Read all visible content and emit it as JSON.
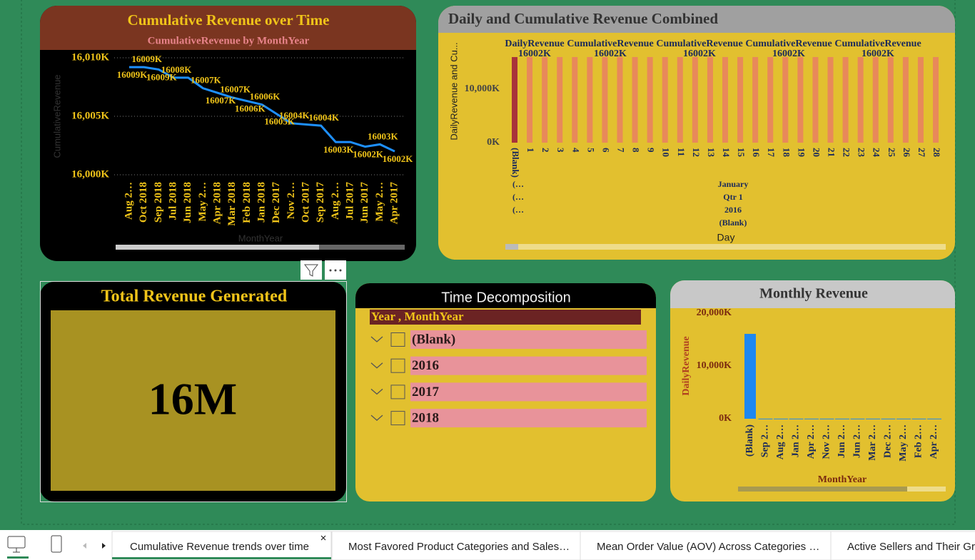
{
  "cumulative": {
    "type": "line",
    "title": "Cumulative Revenue over Time",
    "subtitle": "CumulativeRevenue by MonthYear",
    "y_label": "CumulativeRevenue",
    "x_label": "MonthYear",
    "categories": [
      "Aug 2…",
      "Oct 2018",
      "Sep 2018",
      "Jul 2018",
      "Jun 2018",
      "May 2…",
      "Apr 2018",
      "Mar 2018",
      "Feb 2018",
      "Jan 2018",
      "Dec 2017",
      "Nov 2…",
      "Oct 2017",
      "Sep 2017",
      "Aug 2…",
      "Jul 2017",
      "Jun 2017",
      "May 2…",
      "Apr 2017"
    ],
    "values": [
      16009.2,
      16009.2,
      16009.0,
      16008.3,
      16008.3,
      16007.4,
      16007.0,
      16006.6,
      16006.3,
      16006.0,
      16005.2,
      16004.4,
      16004.3,
      16004.2,
      16002.8,
      16002.8,
      16002.4,
      16002.6,
      16002.0
    ],
    "value_labels": [
      "16009K",
      "16009K",
      "16009K",
      "16008K",
      null,
      "16007K",
      "16007K",
      "16007K",
      "16006K",
      "16006K",
      "16005K",
      "16004K",
      null,
      "16004K",
      "16003K",
      null,
      "16002K",
      "16003K",
      "16002K"
    ],
    "color": "#1e90ff",
    "ylim": [
      16000,
      16010
    ],
    "yticks": [
      {
        "value": 16000,
        "label": "16,000K"
      },
      {
        "value": 16005,
        "label": "16,005K"
      },
      {
        "value": 16010,
        "label": "16,010K"
      }
    ],
    "grid": true
  },
  "combined": {
    "type": "bar",
    "title": "Daily and Cumulative Revenue Combined",
    "y_label": "DailyRevenue and Cu...",
    "x_label": "Day",
    "categories": [
      "(Blank)",
      "1",
      "2",
      "3",
      "4",
      "5",
      "6",
      "7",
      "8",
      "9",
      "10",
      "11",
      "12",
      "13",
      "14",
      "15",
      "16",
      "17",
      "18",
      "19",
      "20",
      "21",
      "22",
      "23",
      "24",
      "25",
      "26",
      "27",
      "28"
    ],
    "values": [
      16002,
      16002,
      16002,
      16002,
      16002,
      16002,
      16002,
      16002,
      16002,
      16002,
      16002,
      16002,
      16002,
      16002,
      16002,
      16002,
      16002,
      16002,
      16002,
      16002,
      16002,
      16002,
      16002,
      16002,
      16002,
      16002,
      16002,
      16002,
      16002
    ],
    "color": "#e8895a",
    "highlight_color": "#a8323a",
    "top_labels": [
      {
        "series": "DailyRevenue",
        "value": 16002,
        "label": "16002K"
      },
      {
        "series": "CumulativeRevenue",
        "value": 16002,
        "label": "16002K"
      },
      {
        "series": "CumulativeRevenue",
        "value": 16002,
        "label": "16002K"
      },
      {
        "series": "CumulativeRevenue",
        "value": 16002,
        "label": "16002K"
      },
      {
        "series": "CumulativeRevenue",
        "value": 16002,
        "label": "16002K"
      }
    ],
    "hierarchy_left": [
      "(…",
      "(…",
      "(…"
    ],
    "hierarchy": [
      "January",
      "Qtr 1",
      "2016",
      "(Blank)"
    ],
    "ylim": [
      0,
      20000
    ],
    "yticks": [
      {
        "value": 0,
        "label": "0K"
      },
      {
        "value": 10000,
        "label": "10,000K"
      }
    ],
    "grid": false
  },
  "kpi": {
    "title": "Total Revenue Generated",
    "value": "16M"
  },
  "slicer": {
    "title": "Time Decomposition",
    "header": "Year , MonthYear",
    "items": [
      "(Blank)",
      "2016",
      "2017",
      "2018"
    ]
  },
  "monthly": {
    "type": "bar",
    "title": "Monthly Revenue",
    "y_label": "DailyRevenue",
    "x_label": "MonthYear",
    "categories": [
      "(Blank)",
      "Sep 2…",
      "Aug 2…",
      "Jan 2…",
      "Apr 2…",
      "Nov 2…",
      "Jun 2…",
      "Jun 2…",
      "Mar 2…",
      "Dec 2…",
      "May 2…",
      "Feb 2…",
      "Apr 2…"
    ],
    "values": [
      16080,
      30,
      30,
      30,
      30,
      30,
      30,
      30,
      30,
      30,
      30,
      30,
      30
    ],
    "color": "#1e88f0",
    "ylim": [
      0,
      20000
    ],
    "yticks": [
      {
        "value": 0,
        "label": "0K"
      },
      {
        "value": 10000,
        "label": "10,000K"
      },
      {
        "value": 20000,
        "label": "20,000K"
      }
    ],
    "grid": false
  },
  "tabs": [
    "Cumulative Revenue trends over time",
    "Most Favored Product Categories and Sales…",
    "Mean Order Value (AOV) Across Categories …",
    "Active Sellers and Their Gro"
  ]
}
